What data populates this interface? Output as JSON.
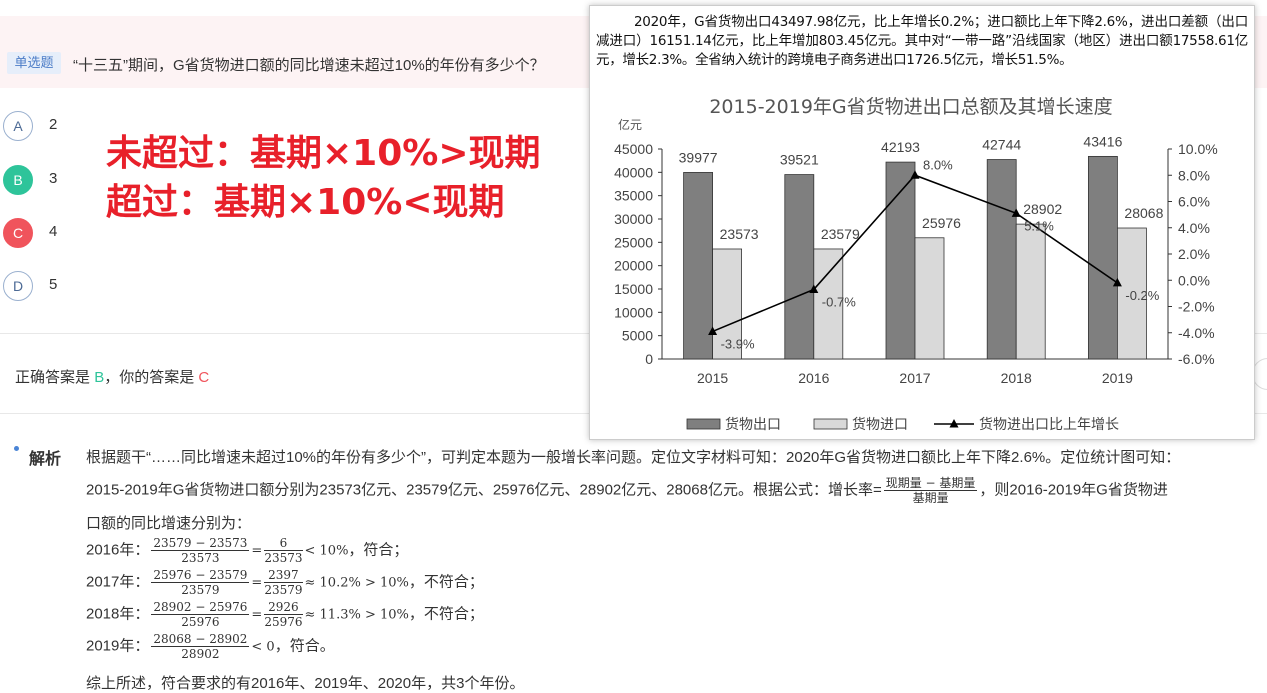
{
  "question": {
    "type_tag": "单选题",
    "text": "“十三五”期间，G省货物进口额的同比增速未超过10%的年份有多少个？"
  },
  "options": [
    {
      "letter": "A",
      "value": "2",
      "state": "normal"
    },
    {
      "letter": "B",
      "value": "3",
      "state": "correct"
    },
    {
      "letter": "C",
      "value": "4",
      "state": "wrong"
    },
    {
      "letter": "D",
      "value": "5",
      "state": "normal"
    }
  ],
  "annotation": {
    "line1": "未超过：基期×10%>现期",
    "line2": "超过：基期×10%<现期"
  },
  "answer": {
    "prefix": "正确答案是",
    "correct": "B",
    "mid": "，你的答案是",
    "yours": "C"
  },
  "analysis": {
    "title": "解析",
    "p1": "根据题干“……同比增速未超过10%的年份有多少个”，可判定本题为一般增长率问题。定位文字材料可知：2020年G省货物进口额比上年下降2.6%。定位统计图可知：",
    "p2a": "2015-2019年G省货物进口额分别为23573亿元、23579亿元、25976亿元、28902亿元、28068亿元。根据公式：增长率=",
    "formula_num": "现期量 − 基期量",
    "formula_den": "基期量",
    "p2b": "，则2016-2019年G省货物进",
    "p3": "口额的同比增速分别为：",
    "rows": [
      {
        "year": "2016年：",
        "num": "23579 − 23573",
        "den": "23573",
        "eq": "=",
        "num2": "6",
        "den2": "23573",
        "tail": "< 10%",
        "verdict": "，符合；"
      },
      {
        "year": "2017年：",
        "num": "25976 − 23579",
        "den": "23579",
        "eq": "=",
        "num2": "2397",
        "den2": "23579",
        "tail": "≈ 10.2% > 10%",
        "verdict": "，不符合；"
      },
      {
        "year": "2018年：",
        "num": "28902 − 25976",
        "den": "25976",
        "eq": "=",
        "num2": "2926",
        "den2": "25976",
        "tail": "≈ 11.3% > 10%",
        "verdict": "，不符合；"
      },
      {
        "year": "2019年：",
        "num": "28068 − 28902",
        "den": "28902",
        "eq": "",
        "num2": "",
        "den2": "",
        "tail": "< 0",
        "verdict": "，符合。"
      }
    ],
    "conclusion": "综上所述，符合要求的有2016年、2019年、2020年，共3个年份。"
  },
  "material": {
    "text": "2020年，G省货物出口43497.98亿元，比上年增长0.2%；进口额比上年下降2.6%，进出口差额（出口减进口）16151.14亿元，比上年增加803.45亿元。其中对“一带一路”沿线国家（地区）进出口额17558.61亿元，增长2.3%。全省纳入统计的跨境电子商务进出口1726.5亿元，增长51.5%。"
  },
  "chart_data": {
    "type": "bar",
    "title": "2015-2019年G省货物进出口总额及其增长速度",
    "ylabel": "亿元",
    "categories": [
      "2015",
      "2016",
      "2017",
      "2018",
      "2019"
    ],
    "ylim": [
      0,
      45000
    ],
    "yticks": [
      0,
      5000,
      10000,
      15000,
      20000,
      25000,
      30000,
      35000,
      40000,
      45000
    ],
    "y2lim": [
      -6.0,
      10.0
    ],
    "y2ticks": [
      "-6.0%",
      "-4.0%",
      "-2.0%",
      "0.0%",
      "2.0%",
      "4.0%",
      "6.0%",
      "8.0%",
      "10.0%"
    ],
    "series": [
      {
        "name": "货物出口",
        "kind": "bar",
        "color": "#7f7f7f",
        "values": [
          39977,
          39521,
          42193,
          42744,
          43416
        ]
      },
      {
        "name": "货物进口",
        "kind": "bar",
        "color": "#d9d9d9",
        "values": [
          23573,
          23579,
          25976,
          28902,
          28068
        ]
      },
      {
        "name": "货物进出口比上年增长",
        "kind": "line",
        "axis": "right",
        "color": "#000000",
        "values": [
          -3.9,
          -0.7,
          8.0,
          5.1,
          -0.2
        ],
        "labels": [
          "-3.9%",
          "-0.7%",
          "8.0%",
          "5.1%",
          "-0.2%"
        ]
      }
    ],
    "grid": false,
    "legend_position": "bottom"
  }
}
